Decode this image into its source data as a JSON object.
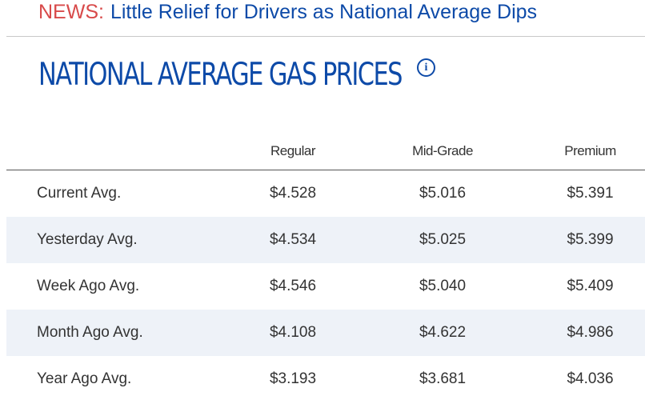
{
  "news": {
    "label": "NEWS:",
    "headline": "Little Relief for Drivers as National Average Dips"
  },
  "title": "NATIONAL AVERAGE GAS PRICES",
  "info_icon": "info-icon",
  "colors": {
    "brand_blue": "#0d4aa8",
    "news_red": "#d84a4a",
    "row_stripe": "#eef2f8",
    "text": "#333333"
  },
  "table": {
    "columns": [
      "",
      "Regular",
      "Mid-Grade",
      "Premium"
    ],
    "rows": [
      {
        "label": "Current Avg.",
        "regular": "$4.528",
        "mid_grade": "$5.016",
        "premium": "$5.391"
      },
      {
        "label": "Yesterday Avg.",
        "regular": "$4.534",
        "mid_grade": "$5.025",
        "premium": "$5.399"
      },
      {
        "label": "Week Ago Avg.",
        "regular": "$4.546",
        "mid_grade": "$5.040",
        "premium": "$5.409"
      },
      {
        "label": "Month Ago Avg.",
        "regular": "$4.108",
        "mid_grade": "$4.622",
        "premium": "$4.986"
      },
      {
        "label": "Year Ago Avg.",
        "regular": "$3.193",
        "mid_grade": "$3.681",
        "premium": "$4.036"
      }
    ]
  }
}
